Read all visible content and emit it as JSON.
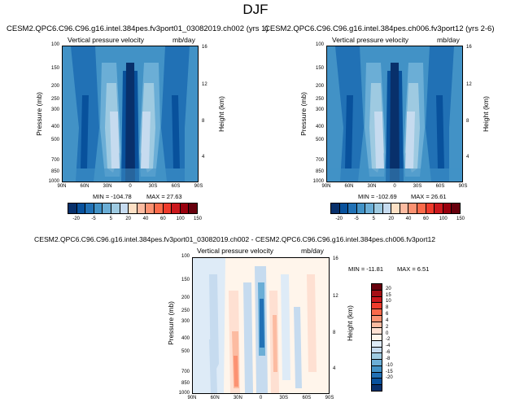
{
  "page": {
    "title": "DJF"
  },
  "colors": {
    "abs_levels": [
      "#08306b",
      "#08519c",
      "#2171b5",
      "#4292c6",
      "#6baed6",
      "#9ecae1",
      "#c6dbef",
      "#fde0c5",
      "#fcbba1",
      "#fc9272",
      "#fb6a4a",
      "#ef3b2c",
      "#cb181d",
      "#99000d",
      "#67000d"
    ],
    "diff_levels": [
      "#67000d",
      "#a50f15",
      "#cb181d",
      "#ef3b2c",
      "#fb6a4a",
      "#fc9272",
      "#fcbba1",
      "#fee0d2",
      "#fff5eb",
      "#deebf7",
      "#c6dbef",
      "#9ecae1",
      "#6baed6",
      "#4292c6",
      "#2171b5",
      "#08519c",
      "#08306b"
    ]
  },
  "chart_data": [
    {
      "type": "heatmap",
      "title": "CESM2.QPC6.C96.C96.g16.intel.384pes.fv3port01_03082019.ch002 (yrs 1)",
      "left_string": "Vertical pressure velocity",
      "right_string": "mb/day",
      "ylabel": "Pressure (mb)",
      "y2label": "Height (km)",
      "x_ticks": [
        "90N",
        "60N",
        "30N",
        "0",
        "30S",
        "60S",
        "90S"
      ],
      "y_ticks": [
        "100",
        "150",
        "200",
        "250",
        "300",
        "400",
        "500",
        "700",
        "850",
        "1000"
      ],
      "y2_ticks": [
        "16",
        "12",
        "8",
        "4"
      ],
      "min_label": "MIN = -104.78",
      "max_label": "MAX = 27.63",
      "colorbar_labels": [
        "-20",
        "-5",
        "5",
        "20",
        "40",
        "60",
        "100",
        "150"
      ]
    },
    {
      "type": "heatmap",
      "title": "CESM2.QPC6.C96.C96.g16.intel.384pes.ch006.fv3port12 (yrs 2-6)",
      "left_string": "Vertical pressure velocity",
      "right_string": "mb/day",
      "ylabel": "Pressure (mb)",
      "y2label": "Height (km)",
      "x_ticks": [
        "90N",
        "60N",
        "30N",
        "0",
        "30S",
        "60S",
        "90S"
      ],
      "y_ticks": [
        "100",
        "150",
        "200",
        "250",
        "300",
        "400",
        "500",
        "700",
        "850",
        "1000"
      ],
      "y2_ticks": [
        "16",
        "12",
        "8",
        "4"
      ],
      "min_label": "MIN = -102.69",
      "max_label": "MAX = 26.61",
      "colorbar_labels": [
        "-20",
        "-5",
        "5",
        "20",
        "40",
        "60",
        "100",
        "150"
      ]
    },
    {
      "type": "heatmap",
      "title": "CESM2.QPC6.C96.C96.g16.intel.384pes.fv3port01_03082019.ch002 - CESM2.QPC6.C96.C96.g16.intel.384pes.ch006.fv3port12",
      "left_string": "Vertical pressure velocity",
      "right_string": "mb/day",
      "ylabel": "Pressure (mb)",
      "y2label": "Height (km)",
      "x_ticks": [
        "90N",
        "60N",
        "30N",
        "0",
        "30S",
        "60S",
        "90S"
      ],
      "y_ticks": [
        "100",
        "150",
        "200",
        "250",
        "300",
        "400",
        "500",
        "700",
        "850",
        "1000"
      ],
      "y2_ticks": [
        "16",
        "12",
        "8",
        "4"
      ],
      "min_label": "MIN = -11.81",
      "max_label": "MAX = 6.51",
      "colorbar_labels": [
        "20",
        "15",
        "10",
        "8",
        "6",
        "4",
        "2",
        "0",
        "-2",
        "-4",
        "-6",
        "-8",
        "-10",
        "-15",
        "-20"
      ]
    }
  ]
}
